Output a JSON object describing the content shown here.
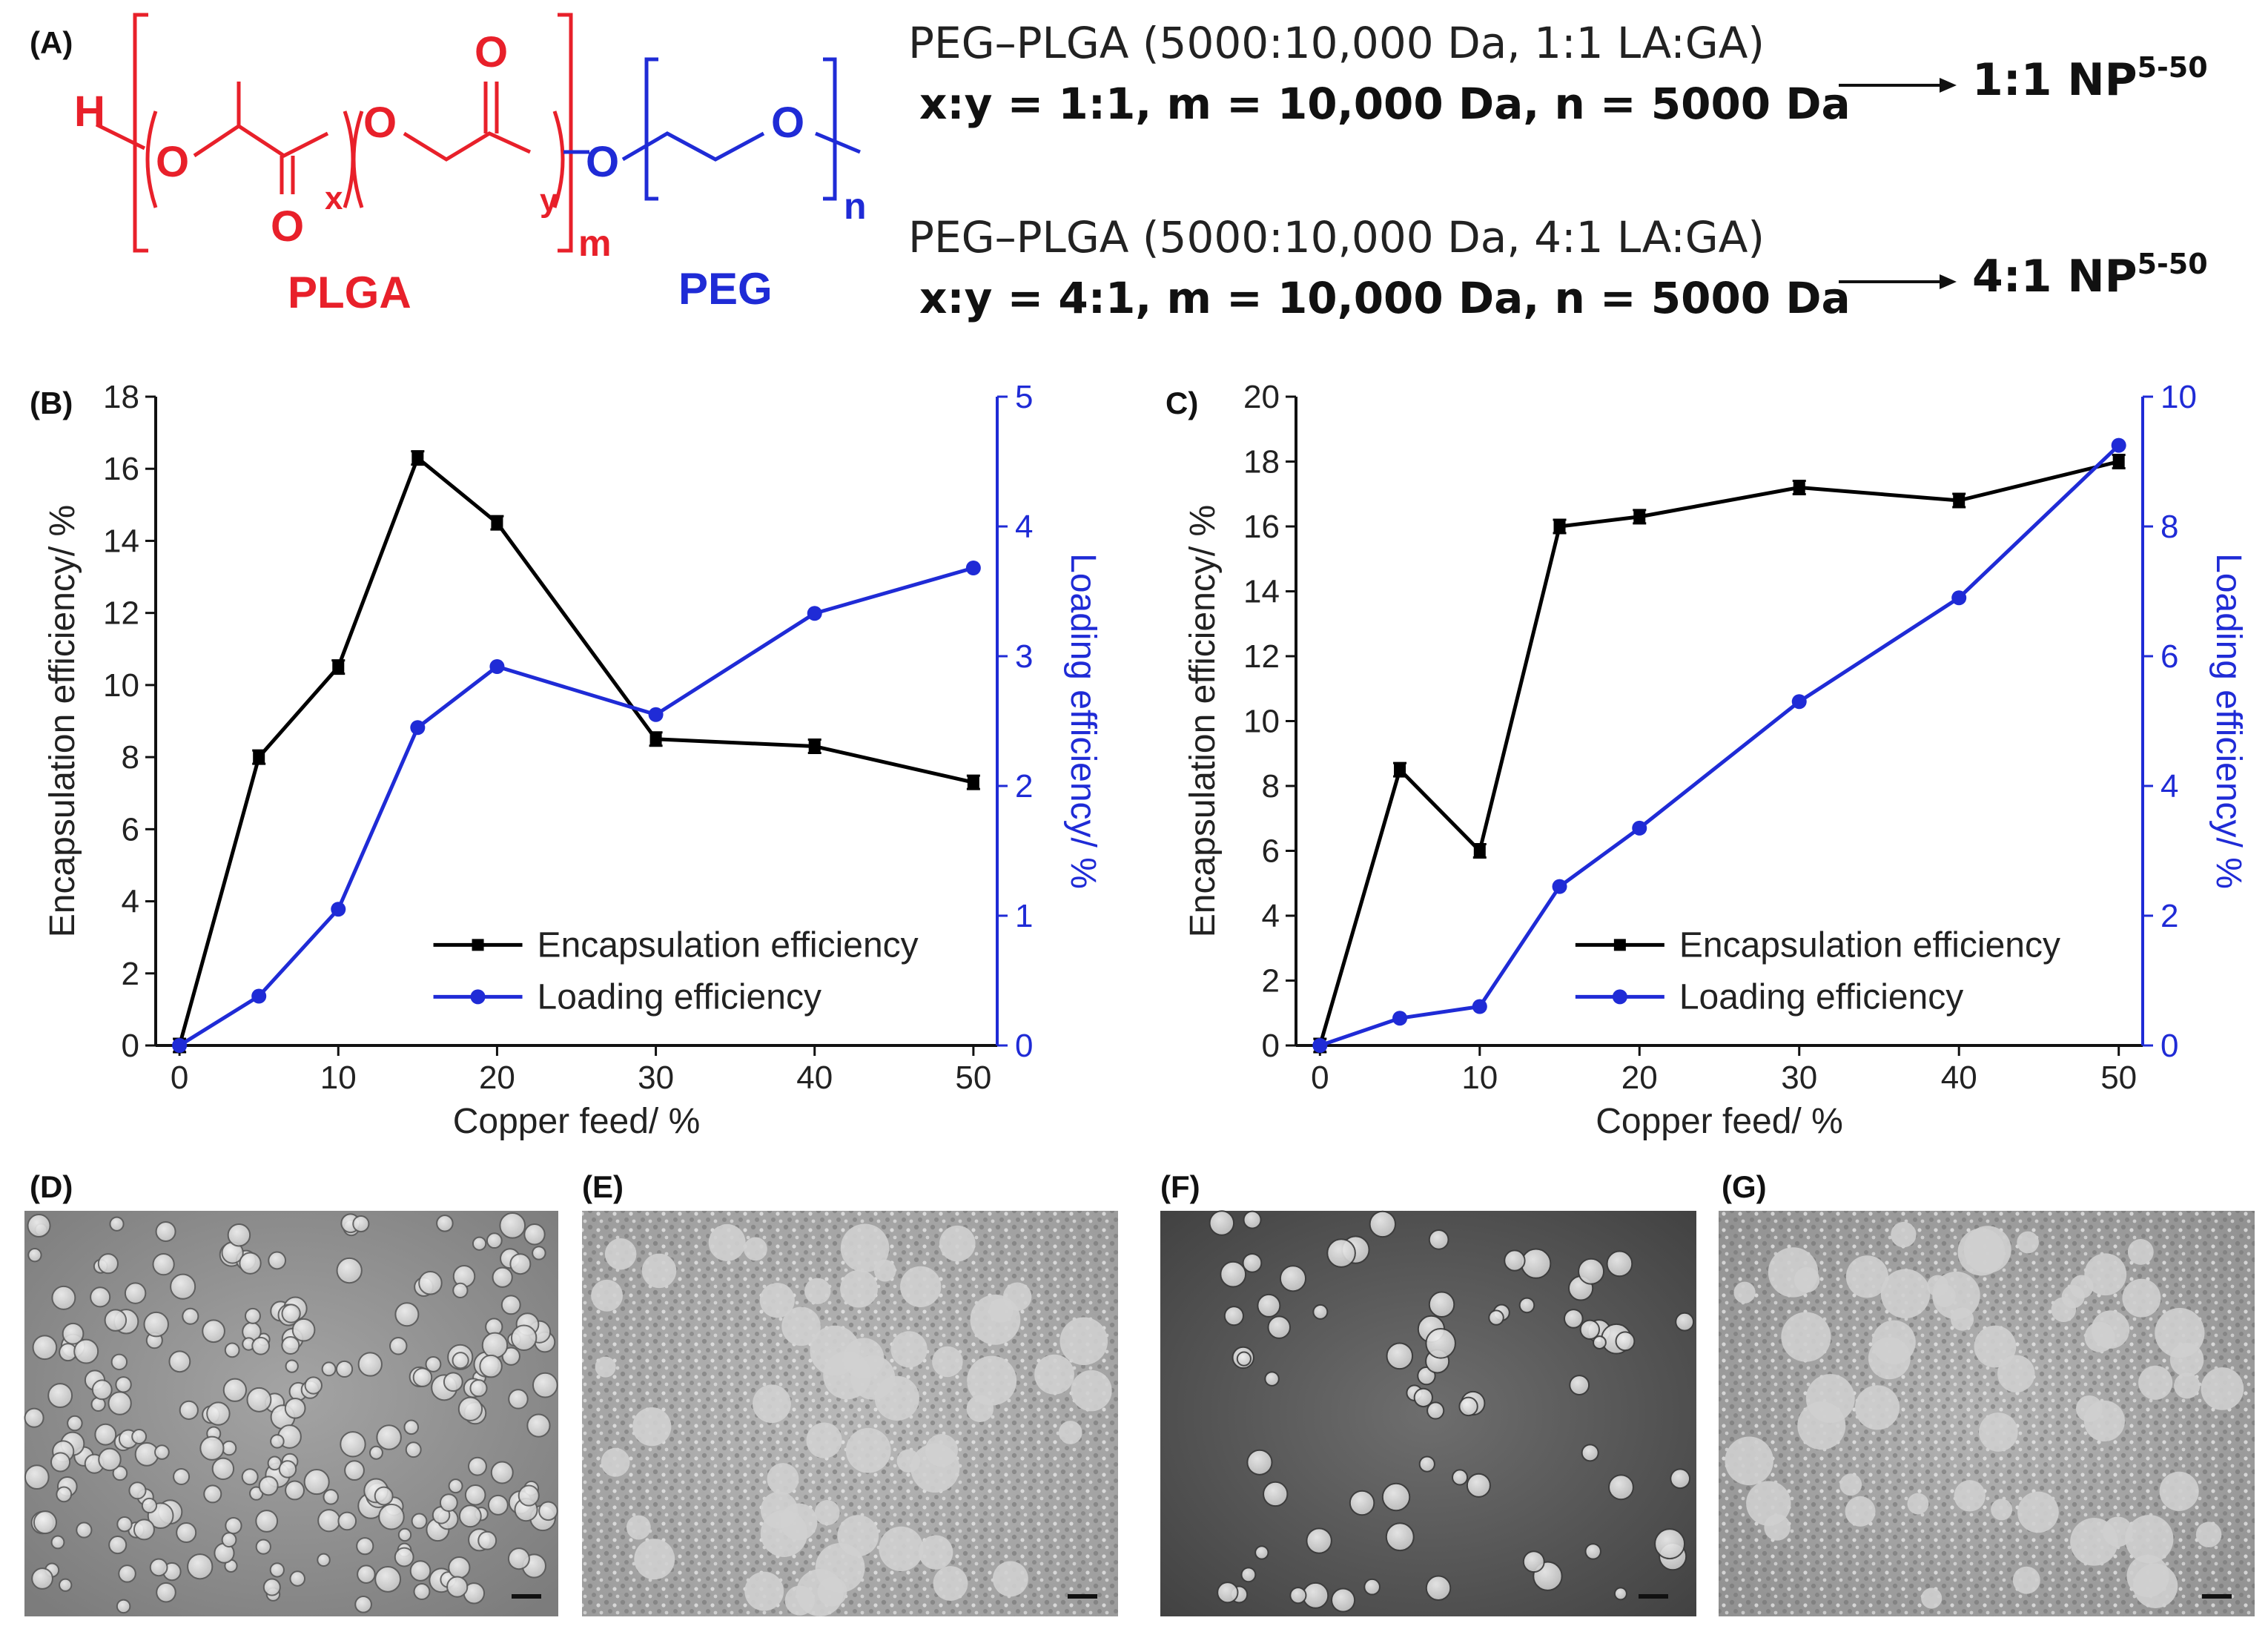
{
  "panels": {
    "a_label": "(A)",
    "b_label": "(B)",
    "c_label": "C)",
    "d_label": "(D)",
    "e_label": "(E)",
    "f_label": "(F)",
    "g_label": "(G)"
  },
  "scheme": {
    "atom_h": "H",
    "atom_o": "O",
    "sub_x": "x",
    "sub_y": "y",
    "sub_m": "m",
    "sub_n": "n",
    "plga_label": "PLGA",
    "peg_label": "PEG",
    "colors": {
      "plga": "#e8202a",
      "peg": "#1f2bd6"
    },
    "formulations": [
      {
        "title": "PEG–PLGA (5000:10,000 Da, 1:1 LA:GA)",
        "params": "x:y = 1:1, m =  10,000 Da, n = 5000 Da",
        "product": "1:1 NP",
        "product_sup": "5-50"
      },
      {
        "title": "PEG–PLGA (5000:10,000 Da, 4:1 LA:GA)",
        "params": "x:y = 4:1, m =  10,000 Da, n = 5000 Da",
        "product": "4:1 NP",
        "product_sup": "5-50"
      }
    ]
  },
  "chart_data": [
    {
      "panel": "B",
      "type": "line",
      "xlabel": "Copper feed/ %",
      "ylabel": "Encapsulation efficiency/ %",
      "y2label": "Loading efficiency/ %",
      "xlim": [
        -1.5,
        51.5
      ],
      "ylim": [
        0,
        18
      ],
      "y2lim": [
        0,
        5
      ],
      "xticks": [
        0,
        10,
        20,
        30,
        40,
        50
      ],
      "yticks": [
        0,
        2,
        4,
        6,
        8,
        10,
        12,
        14,
        16,
        18
      ],
      "y2ticks": [
        0,
        1,
        2,
        3,
        4,
        5
      ],
      "legend_position": "lower-right",
      "x": [
        0,
        5,
        10,
        15,
        20,
        30,
        40,
        50
      ],
      "series": [
        {
          "name": "Encapsulation efficiency",
          "axis": "left",
          "color": "#000000",
          "marker": "square",
          "values": [
            0,
            8.0,
            10.5,
            16.3,
            14.5,
            8.5,
            8.3,
            7.3
          ]
        },
        {
          "name": "Loading efficiency",
          "axis": "right",
          "color": "#1f2bd6",
          "marker": "circle",
          "values": [
            0,
            0.38,
            1.05,
            2.45,
            2.92,
            2.55,
            3.33,
            3.68
          ]
        }
      ]
    },
    {
      "panel": "C",
      "type": "line",
      "xlabel": "Copper feed/ %",
      "ylabel": "Encapsulation efficiency/ %",
      "y2label": "Loading efficiency/ %",
      "xlim": [
        -1.5,
        51.5
      ],
      "ylim": [
        0,
        20
      ],
      "y2lim": [
        0,
        10
      ],
      "xticks": [
        0,
        10,
        20,
        30,
        40,
        50
      ],
      "yticks": [
        0,
        2,
        4,
        6,
        8,
        10,
        12,
        14,
        16,
        18,
        20
      ],
      "y2ticks": [
        0,
        2,
        4,
        6,
        8,
        10
      ],
      "legend_position": "lower-right",
      "x": [
        0,
        5,
        10,
        15,
        20,
        30,
        40,
        50
      ],
      "series": [
        {
          "name": "Encapsulation efficiency",
          "axis": "left",
          "color": "#000000",
          "marker": "square",
          "values": [
            0,
            8.5,
            6.0,
            16.0,
            16.3,
            17.2,
            16.8,
            18.0
          ]
        },
        {
          "name": "Loading efficiency",
          "axis": "right",
          "color": "#1f2bd6",
          "marker": "circle",
          "values": [
            0,
            0.42,
            0.6,
            2.45,
            3.35,
            5.3,
            6.9,
            9.25
          ]
        }
      ]
    }
  ]
}
